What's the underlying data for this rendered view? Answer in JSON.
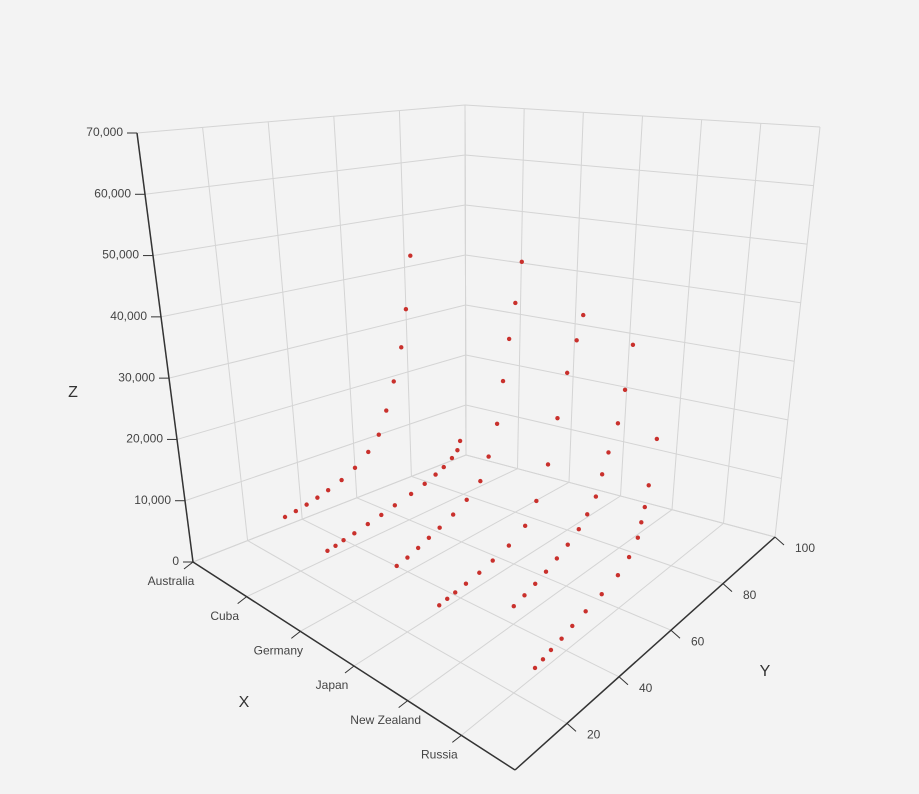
{
  "chart_data": {
    "type": "scatter3d",
    "x_label": "X",
    "y_label": "Y",
    "z_label": "Z",
    "categories": [
      "Australia",
      "Cuba",
      "Germany",
      "Japan",
      "New Zealand",
      "Russia"
    ],
    "ylim": [
      0,
      100
    ],
    "yticks": [
      20,
      40,
      60,
      80,
      100
    ],
    "zlim": [
      0,
      70000
    ],
    "zticks": [
      0,
      {
        "value": 10000,
        "label": "10,000"
      },
      {
        "value": 20000,
        "label": "20,000"
      },
      {
        "value": 30000,
        "label": "30,000"
      },
      {
        "value": 40000,
        "label": "40,000"
      },
      {
        "value": 50000,
        "label": "50,000"
      },
      {
        "value": 60000,
        "label": "60,000"
      },
      {
        "value": 70000,
        "label": "70,000"
      }
    ],
    "color": "#c9302c",
    "grid": true,
    "x": [
      "Australia",
      "Australia",
      "Australia",
      "Australia",
      "Australia",
      "Australia",
      "Australia",
      "Australia",
      "Australia",
      "Australia",
      "Australia",
      "Australia",
      "Australia",
      "Australia",
      "Cuba",
      "Cuba",
      "Cuba",
      "Cuba",
      "Cuba",
      "Cuba",
      "Cuba",
      "Cuba",
      "Cuba",
      "Cuba",
      "Cuba",
      "Cuba",
      "Cuba",
      "Cuba",
      "Germany",
      "Germany",
      "Germany",
      "Germany",
      "Germany",
      "Germany",
      "Germany",
      "Germany",
      "Germany",
      "Germany",
      "Germany",
      "Germany",
      "Germany",
      "Germany",
      "Japan",
      "Japan",
      "Japan",
      "Japan",
      "Japan",
      "Japan",
      "Japan",
      "Japan",
      "Japan",
      "Japan",
      "Japan",
      "Japan",
      "Japan",
      "Japan",
      "New Zealand",
      "New Zealand",
      "New Zealand",
      "New Zealand",
      "New Zealand",
      "New Zealand",
      "New Zealand",
      "New Zealand",
      "New Zealand",
      "New Zealand",
      "New Zealand",
      "New Zealand",
      "New Zealand",
      "New Zealand",
      "Russia",
      "Russia",
      "Russia",
      "Russia",
      "Russia",
      "Russia",
      "Russia",
      "Russia",
      "Russia",
      "Russia",
      "Russia",
      "Russia",
      "Russia",
      "Russia"
    ],
    "y": [
      34,
      38,
      42,
      46,
      50,
      55,
      60,
      65,
      69,
      72,
      75,
      78,
      80,
      82,
      30,
      33,
      36,
      40,
      45,
      50,
      55,
      61,
      66,
      70,
      73,
      76,
      78,
      79,
      36,
      40,
      44,
      48,
      52,
      57,
      62,
      67,
      70,
      73,
      75,
      77,
      79,
      81,
      32,
      35,
      38,
      42,
      47,
      52,
      58,
      64,
      68,
      72,
      75,
      78,
      81,
      83,
      40,
      44,
      48,
      52,
      56,
      60,
      64,
      67,
      70,
      72,
      74,
      77,
      79,
      81,
      28,
      31,
      34,
      38,
      42,
      47,
      53,
      59,
      63,
      66,
      67,
      68,
      69,
      71
    ],
    "z": [
      1500,
      1800,
      2200,
      2700,
      3300,
      4200,
      5500,
      7500,
      10000,
      14000,
      19000,
      25000,
      32000,
      42000,
      1200,
      1400,
      1700,
      2000,
      2500,
      3000,
      3600,
      4300,
      5000,
      5800,
      6500,
      7500,
      8500,
      10000,
      1800,
      2200,
      2800,
      3500,
      4200,
      5200,
      6500,
      8500,
      12000,
      17000,
      24000,
      31000,
      37000,
      44000,
      900,
      1100,
      1300,
      1600,
      2000,
      2600,
      3400,
      5000,
      8000,
      13000,
      20000,
      27000,
      32000,
      36000,
      2500,
      3000,
      3600,
      4300,
      5200,
      6200,
      7500,
      9000,
      11000,
      14000,
      17000,
      21000,
      26000,
      33000,
      1000,
      1300,
      1700,
      2100,
      2700,
      3300,
      4000,
      5000,
      6500,
      8500,
      10500,
      12500,
      15500,
      22000
    ]
  }
}
